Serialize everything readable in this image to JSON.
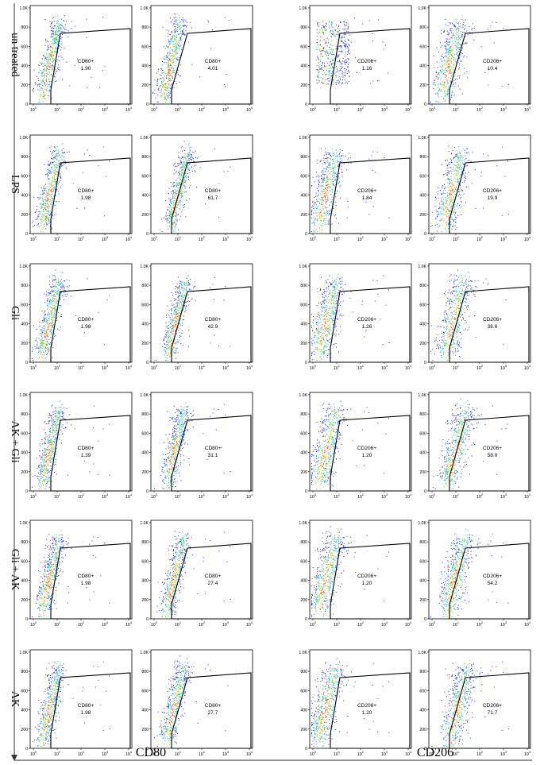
{
  "chart_data": {
    "type": "scatter",
    "rows": [
      "un treated",
      "LPS",
      "Gli",
      "AK + Gli",
      "Gli + AK",
      "AK"
    ],
    "column_markers": [
      "CD80",
      "CD206"
    ],
    "y_ticks": [
      "0",
      "200",
      "400",
      "600",
      "800",
      "1.0K"
    ],
    "x_ticks": [
      "10",
      "10",
      "10",
      "10",
      "10"
    ],
    "x_tick_exponents": [
      "0",
      "1",
      "2",
      "3",
      "4"
    ],
    "ylim": [
      0,
      1024
    ],
    "x_scale": "log",
    "xlim_decades": [
      0,
      4
    ],
    "panels": [
      {
        "row": "un treated",
        "marker": "CD80",
        "gate_label": "CD80+",
        "percent": "1.90"
      },
      {
        "row": "un treated",
        "marker": "CD80",
        "gate_label": "CD80+",
        "percent": "4.01"
      },
      {
        "row": "un treated",
        "marker": "CD206",
        "gate_label": "CD206+",
        "percent": "1.16"
      },
      {
        "row": "un treated",
        "marker": "CD206",
        "gate_label": "CD206+",
        "percent": "10.4"
      },
      {
        "row": "LPS",
        "marker": "CD80",
        "gate_label": "CD80+",
        "percent": "1.98"
      },
      {
        "row": "LPS",
        "marker": "CD80",
        "gate_label": "CD80+",
        "percent": "61.7"
      },
      {
        "row": "LPS",
        "marker": "CD206",
        "gate_label": "CD206+",
        "percent": "1.84"
      },
      {
        "row": "LPS",
        "marker": "CD206",
        "gate_label": "CD206+",
        "percent": "19.9"
      },
      {
        "row": "Gli",
        "marker": "CD80",
        "gate_label": "CD80+",
        "percent": "1.98"
      },
      {
        "row": "Gli",
        "marker": "CD80",
        "gate_label": "CD80+",
        "percent": "42.9"
      },
      {
        "row": "Gli",
        "marker": "CD206",
        "gate_label": "CD206+",
        "percent": "1.26"
      },
      {
        "row": "Gli",
        "marker": "CD206",
        "gate_label": "CD206+",
        "percent": "38.6"
      },
      {
        "row": "AK + Gli",
        "marker": "CD80",
        "gate_label": "CD80+",
        "percent": "1.39"
      },
      {
        "row": "AK + Gli",
        "marker": "CD80",
        "gate_label": "CD80+",
        "percent": "31.1"
      },
      {
        "row": "AK + Gli",
        "marker": "CD206",
        "gate_label": "CD206+",
        "percent": "1.20"
      },
      {
        "row": "AK + Gli",
        "marker": "CD206",
        "gate_label": "CD206+",
        "percent": "58.0"
      },
      {
        "row": "Gli + AK",
        "marker": "CD80",
        "gate_label": "CD80+",
        "percent": "1.98"
      },
      {
        "row": "Gli + AK",
        "marker": "CD80",
        "gate_label": "CD80+",
        "percent": "27.4"
      },
      {
        "row": "Gli + AK",
        "marker": "CD206",
        "gate_label": "CD206+",
        "percent": "1.20"
      },
      {
        "row": "Gli + AK",
        "marker": "CD206",
        "gate_label": "CD206+",
        "percent": "54.2"
      },
      {
        "row": "AK",
        "marker": "CD80",
        "gate_label": "CD80+",
        "percent": "1.98"
      },
      {
        "row": "AK",
        "marker": "CD80",
        "gate_label": "CD80+",
        "percent": "27.7"
      },
      {
        "row": "AK",
        "marker": "CD206",
        "gate_label": "CD206+",
        "percent": "1.20"
      },
      {
        "row": "AK",
        "marker": "CD206",
        "gate_label": "CD206+",
        "percent": "71.7"
      }
    ],
    "grid": false,
    "legend": "none",
    "point_colors": [
      "#1a2fd6",
      "#1fb8e6",
      "#22c44a",
      "#e6d21c",
      "#e8401c"
    ]
  }
}
